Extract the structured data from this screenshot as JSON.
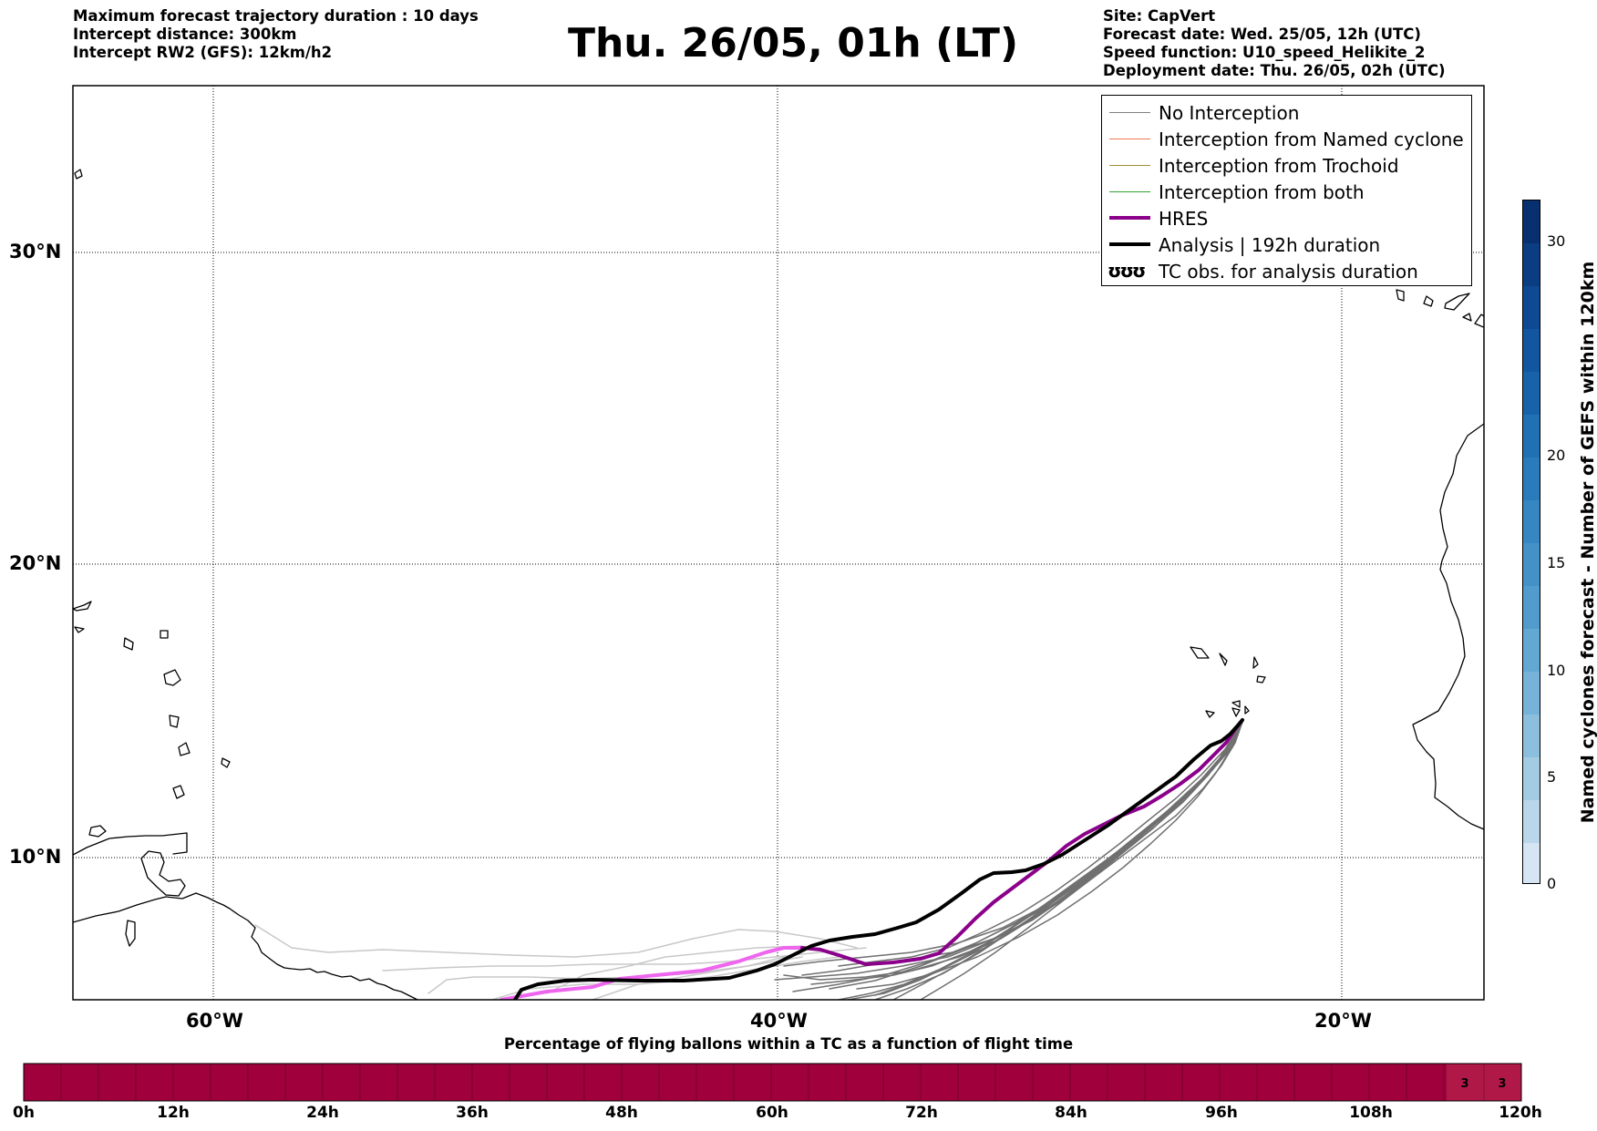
{
  "header": {
    "left": [
      "Maximum forecast trajectory duration : 10 days",
      "Intercept distance: 300km",
      "Intercept RW2 (GFS):  12km/h2"
    ],
    "title": "Thu. 26/05, 01h (LT)",
    "right": [
      "Site: CapVert",
      "Forecast date: Wed. 25/05, 12h (UTC)",
      "Speed function: U10_speed_Helikite_2",
      "Deployment date: Thu. 26/05, 02h (UTC)"
    ]
  },
  "map": {
    "lat_labels": [
      "30°N",
      "20°N",
      "10°N"
    ],
    "lon_labels": [
      "60°W",
      "40°W",
      "20°W"
    ],
    "lat_gridlines": [
      30,
      20,
      10
    ],
    "lon_gridlines": [
      -60,
      -40,
      -20
    ],
    "extent": {
      "lon": [
        -65,
        -15
      ],
      "lat": [
        5.4,
        34.7
      ]
    },
    "grid": "dotted"
  },
  "legend": {
    "items": [
      {
        "label": "No Interception",
        "color": "#808080",
        "style": "thin"
      },
      {
        "label": "Interception from Named cyclone",
        "color": "#f07a50",
        "style": "thin"
      },
      {
        "label": "Interception from Trochoid",
        "color": "#a09030",
        "style": "thin"
      },
      {
        "label": "Interception from both",
        "color": "#30a030",
        "style": "thin"
      },
      {
        "label": "HRES",
        "color": "#8b008b",
        "style": "thick"
      },
      {
        "label": "Analysis | 192h duration",
        "color": "#000000",
        "style": "thick"
      }
    ],
    "tc_symbol": "ʊʊʊ",
    "tc_label": "TC obs. for analysis duration"
  },
  "colorbar": {
    "label": "Named cyclones forecast - Number of GEFS within 120km",
    "ticks": [
      "0",
      "5",
      "10",
      "15",
      "20",
      "30"
    ],
    "range": [
      0,
      32
    ]
  },
  "timeline": {
    "title": "Percentage of flying ballons within a TC as a function of flight time",
    "labels": [
      "0h",
      "12h",
      "24h",
      "36h",
      "48h",
      "60h",
      "72h",
      "84h",
      "96h",
      "108h",
      "120h"
    ],
    "cell_values": [
      "3",
      "3"
    ],
    "bar_color": "#a0003c",
    "highlight_color": "#b01848"
  }
}
